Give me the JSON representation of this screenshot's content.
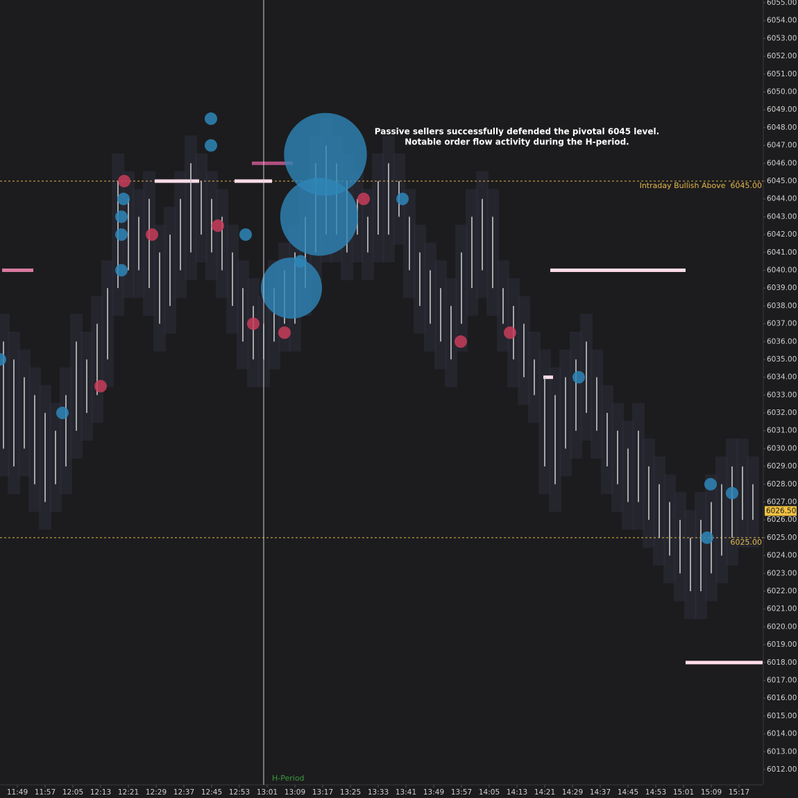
{
  "chart_data": {
    "type": "range",
    "annotation_lines": [
      "Passive sellers successfully defended the pivotal 6045 level.",
      "Notable order flow activity during the H-period."
    ],
    "bar_color": "#c8c8c8",
    "x": [
      705,
      708,
      711,
      714,
      717,
      720,
      723,
      726,
      729,
      732,
      735,
      738,
      741,
      744,
      747,
      750,
      753,
      756,
      759,
      762,
      765,
      768,
      771,
      774,
      777,
      780,
      783,
      786,
      789,
      792,
      795,
      798,
      801,
      804,
      807,
      810,
      813,
      816,
      819,
      822,
      825,
      828,
      831,
      834,
      837,
      840,
      843,
      846,
      849,
      852,
      855,
      858,
      861,
      864,
      867,
      870,
      873,
      876,
      879,
      882,
      885,
      888,
      891,
      894,
      897,
      900,
      903,
      906,
      909,
      912,
      915,
      918,
      921
    ],
    "low": [
      6030,
      6029,
      6030,
      6028,
      6027,
      6028,
      6029,
      6031,
      6032,
      6033,
      6035,
      6039,
      6040,
      6040,
      6039,
      6037,
      6038,
      6040,
      6041,
      6042,
      6041,
      6040,
      6038,
      6036,
      6035,
      6035,
      6036,
      6037,
      6037,
      6039,
      6041,
      6042,
      6042,
      6041,
      6042,
      6041,
      6042,
      6042,
      6043,
      6040,
      6038,
      6037,
      6036,
      6035,
      6037,
      6039,
      6040,
      6039,
      6037,
      6035,
      6034,
      6033,
      6029,
      6028,
      6030,
      6031,
      6032,
      6031,
      6029,
      6028,
      6027,
      6027,
      6026,
      6025,
      6024,
      6023,
      6022,
      6022,
      6023,
      6024,
      6025,
      6026,
      6026
    ],
    "high": [
      6036,
      6035,
      6034,
      6033,
      6032,
      6031,
      6033,
      6036,
      6035,
      6037,
      6039,
      6045,
      6044,
      6043,
      6044,
      6041,
      6042,
      6044,
      6046,
      6045,
      6044,
      6043,
      6041,
      6039,
      6038,
      6037,
      6039,
      6040,
      6041,
      6043,
      6046,
      6047,
      6046,
      6045,
      6044,
      6043,
      6045,
      6046,
      6045,
      6043,
      6041,
      6040,
      6039,
      6038,
      6041,
      6043,
      6044,
      6043,
      6039,
      6038,
      6037,
      6035,
      6034,
      6033,
      6034,
      6035,
      6036,
      6034,
      6032,
      6031,
      6030,
      6031,
      6029,
      6028,
      6027,
      6026,
      6025,
      6026,
      6027,
      6028,
      6029,
      6029,
      6028
    ],
    "buy_trades": {
      "color": "#2e86b8",
      "x": [
        704,
        722,
        739,
        739,
        739,
        739.6,
        764.8,
        764.8,
        774.8,
        790.6,
        820,
        870.8,
        908.8,
        915,
        907.8,
        797.8,
        796,
        788
      ],
      "y": [
        6035,
        6032,
        6040,
        6042,
        6043,
        6044,
        6048.5,
        6047,
        6042,
        6040.5,
        6044,
        6034,
        6028,
        6027.5,
        6025,
        6046.5,
        6043,
        6039
      ],
      "size": [
        1,
        1,
        1,
        1,
        1,
        1,
        1,
        1,
        1,
        1,
        1,
        1,
        1,
        1,
        1,
        44,
        39,
        24
      ]
    },
    "sell_trades": {
      "color": "#c83c5a",
      "x": [
        739.8,
        733,
        747.8,
        766.8,
        777,
        786,
        808.8,
        836.8,
        851
      ],
      "y": [
        6045,
        6033.5,
        6042,
        6042.5,
        6037,
        6036.5,
        6044,
        6036,
        6036.5
      ],
      "size": [
        1,
        1,
        1,
        1,
        1,
        1,
        1,
        1,
        1
      ]
    },
    "walls": {
      "price": [
        6045,
        6045,
        6046,
        6040,
        6018,
        6034,
        6040
      ],
      "start": [
        748.6,
        771.6,
        776.6,
        862.6,
        901.6,
        860.6,
        704.6
      ],
      "end": [
        761.4,
        782.4,
        788.4,
        901.6,
        923.8,
        863.4,
        713.6
      ],
      "colors": [
        "#ffdce8",
        "#ffdce8",
        "#b05080",
        "#ffdce8",
        "#ffdce8",
        "#ffdce8",
        "#d87aa0"
      ]
    },
    "levels": [
      {
        "value": 6045,
        "label": "Intraday Bullish Above  6045.00",
        "color": "#e6b84a"
      },
      {
        "value": 6025,
        "label": "6025.00",
        "color": "#e6b84a"
      }
    ],
    "last_price": {
      "value": 6026.5,
      "label": "6026.50",
      "color": "#f0c040"
    },
    "marker": {
      "x": 780,
      "label": "H-Period",
      "color": "#3a9a3a"
    },
    "xlim": [
      704,
      924
    ],
    "ylim": [
      6012,
      6055
    ],
    "xticks": [
      {
        "value": 709,
        "label": "11:49"
      },
      {
        "value": 717,
        "label": "11:57"
      },
      {
        "value": 725,
        "label": "12:05"
      },
      {
        "value": 733,
        "label": "12:13"
      },
      {
        "value": 741,
        "label": "12:21"
      },
      {
        "value": 749,
        "label": "12:29"
      },
      {
        "value": 757,
        "label": "12:37"
      },
      {
        "value": 765,
        "label": "12:45"
      },
      {
        "value": 773,
        "label": "12:53"
      },
      {
        "value": 781,
        "label": "13:01"
      },
      {
        "value": 789,
        "label": "13:09"
      },
      {
        "value": 797,
        "label": "13:17"
      },
      {
        "value": 805,
        "label": "13:25"
      },
      {
        "value": 813,
        "label": "13:33"
      },
      {
        "value": 821,
        "label": "13:41"
      },
      {
        "value": 829,
        "label": "13:49"
      },
      {
        "value": 837,
        "label": "13:57"
      },
      {
        "value": 845,
        "label": "14:05"
      },
      {
        "value": 853,
        "label": "14:13"
      },
      {
        "value": 861,
        "label": "14:21"
      },
      {
        "value": 869,
        "label": "14:29"
      },
      {
        "value": 877,
        "label": "14:37"
      },
      {
        "value": 885,
        "label": "14:45"
      },
      {
        "value": 893,
        "label": "14:53"
      },
      {
        "value": 901,
        "label": "15:01"
      },
      {
        "value": 909,
        "label": "15:09"
      },
      {
        "value": 917,
        "label": "15:17"
      }
    ],
    "yticks": [
      {
        "value": 6012,
        "label": "6012.00"
      },
      {
        "value": 6013,
        "label": "6013.00"
      },
      {
        "value": 6014,
        "label": "6014.00"
      },
      {
        "value": 6015,
        "label": "6015.00"
      },
      {
        "value": 6016,
        "label": "6016.00"
      },
      {
        "value": 6017,
        "label": "6017.00"
      },
      {
        "value": 6018,
        "label": "6018.00"
      },
      {
        "value": 6019,
        "label": "6019.00"
      },
      {
        "value": 6020,
        "label": "6020.00"
      },
      {
        "value": 6021,
        "label": "6021.00"
      },
      {
        "value": 6022,
        "label": "6022.00"
      },
      {
        "value": 6023,
        "label": "6023.00"
      },
      {
        "value": 6024,
        "label": "6024.00"
      },
      {
        "value": 6025,
        "label": "6025.00"
      },
      {
        "value": 6026,
        "label": "6026.00"
      },
      {
        "value": 6027,
        "label": "6027.00"
      },
      {
        "value": 6028,
        "label": "6028.00"
      },
      {
        "value": 6029,
        "label": "6029.00"
      },
      {
        "value": 6030,
        "label": "6030.00"
      },
      {
        "value": 6031,
        "label": "6031.00"
      },
      {
        "value": 6032,
        "label": "6032.00"
      },
      {
        "value": 6033,
        "label": "6033.00"
      },
      {
        "value": 6034,
        "label": "6034.00"
      },
      {
        "value": 6035,
        "label": "6035.00"
      },
      {
        "value": 6036,
        "label": "6036.00"
      },
      {
        "value": 6037,
        "label": "6037.00"
      },
      {
        "value": 6038,
        "label": "6038.00"
      },
      {
        "value": 6039,
        "label": "6039.00"
      },
      {
        "value": 6040,
        "label": "6040.00"
      },
      {
        "value": 6041,
        "label": "6041.00"
      },
      {
        "value": 6042,
        "label": "6042.00"
      },
      {
        "value": 6043,
        "label": "6043.00"
      },
      {
        "value": 6044,
        "label": "6044.00"
      },
      {
        "value": 6045,
        "label": "6045.00"
      },
      {
        "value": 6046,
        "label": "6046.00"
      },
      {
        "value": 6047,
        "label": "6047.00"
      },
      {
        "value": 6048,
        "label": "6048.00"
      },
      {
        "value": 6049,
        "label": "6049.00"
      },
      {
        "value": 6050,
        "label": "6050.00"
      },
      {
        "value": 6051,
        "label": "6051.00"
      },
      {
        "value": 6052,
        "label": "6052.00"
      },
      {
        "value": 6053,
        "label": "6053.00"
      },
      {
        "value": 6054,
        "label": "6054.00"
      },
      {
        "value": 6055,
        "label": "6055.00"
      }
    ]
  }
}
